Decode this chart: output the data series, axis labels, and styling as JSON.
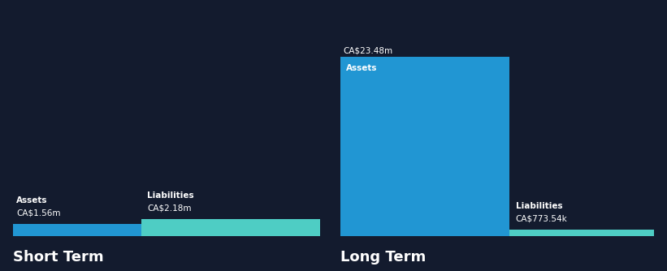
{
  "background_color": "#131b2e",
  "short_term": {
    "assets_value": 1.56,
    "assets_label": "CA$1.56m",
    "assets_color": "#2196d3",
    "liabilities_value": 2.18,
    "liabilities_label": "CA$2.18m",
    "liabilities_color": "#4ecdc4",
    "title": "Short Term"
  },
  "long_term": {
    "assets_value": 23.48,
    "assets_label": "CA$23.48m",
    "assets_color": "#2196d3",
    "liabilities_value": 0.77354,
    "liabilities_label": "CA$773.54k",
    "liabilities_color": "#4ecdc4",
    "title": "Long Term"
  },
  "text_color": "#ffffff",
  "label_assets": "Assets",
  "label_liabilities": "Liabilities",
  "title_fontsize": 13,
  "label_fontsize": 7.5,
  "value_fontsize": 7.5
}
